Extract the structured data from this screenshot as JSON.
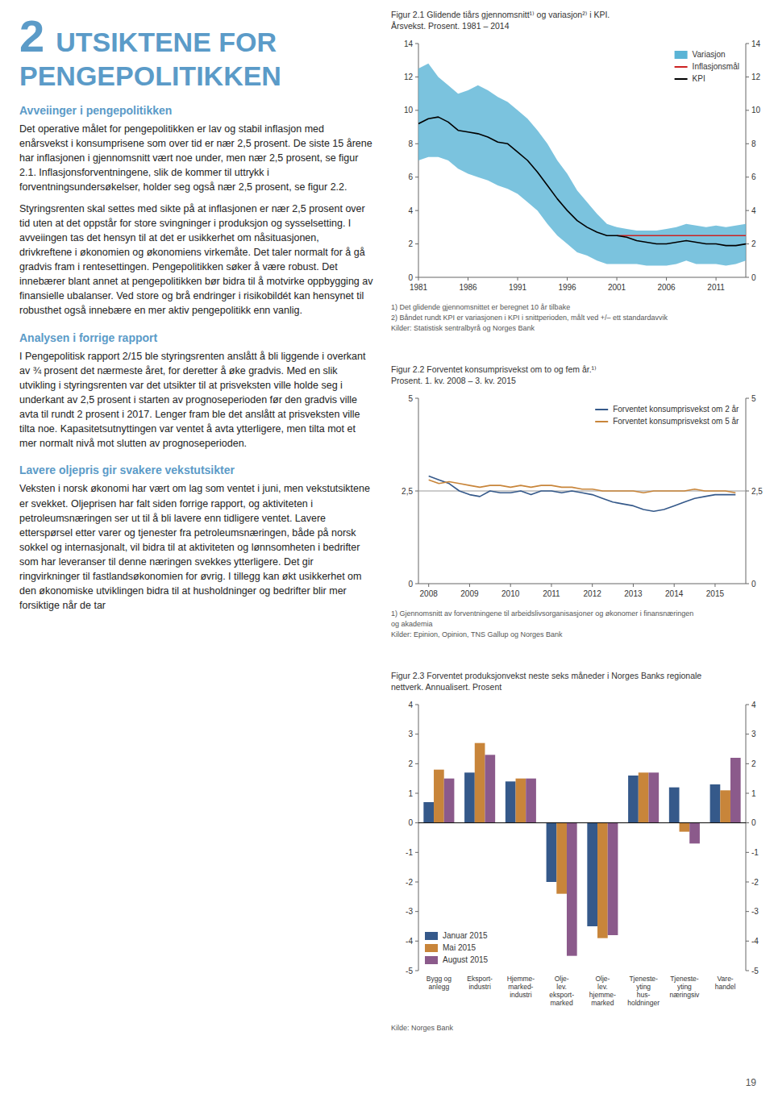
{
  "page": {
    "heading_number": "2",
    "heading_lines": [
      "UTSIKTENE FOR",
      "PENGEPOLITIKKEN"
    ],
    "color": "#5b9bc8",
    "sections": [
      {
        "heading": "Avveiinger i pengepolitikken",
        "paragraphs": [
          "Det operative målet for pengepolitikken er lav og stabil inflasjon med enårsvekst i konsumprisene som over tid er nær 2,5 prosent. De siste 15 årene har inflasjonen i gjennomsnitt vært noe under, men nær 2,5 prosent, se figur 2.1. Inflasjonsforventningene, slik de kommer til uttrykk i forventningsundersøkelser, holder seg også nær 2,5 prosent, se figur 2.2.",
          "Styringsrenten skal settes med sikte på at inflasjonen er nær 2,5 prosent over tid uten at det oppstår for store svingninger i produksjon og sysselsetting. I avveiingen tas det hensyn til at det er usikkerhet om nåsituasjonen, drivkreftene i økonomien og økonomiens virkemåte. Det taler normalt for å gå gradvis fram i rentesettingen. Pengepolitikken søker å være robust. Det innebærer blant annet at pengepolitikken bør bidra til å motvirke oppbygging av finansielle ubalanser. Ved store og brå endringer i risikobildét kan hensynet til robusthet også innebære en mer aktiv pengepolitikk enn vanlig."
        ]
      },
      {
        "heading": "Analysen i forrige rapport",
        "paragraphs": [
          "I Pengepolitisk rapport 2/15 ble styringsrenten anslått å bli liggende i overkant av ¾ prosent det nærmeste året, for deretter å øke gradvis. Med en slik utvikling i styringsrenten var det utsikter til at prisveksten ville holde seg i underkant av 2,5 prosent i starten av prognoseperioden før den gradvis ville avta til rundt 2 prosent i 2017. Lenger fram ble det anslått at prisveksten ville tilta noe. Kapasitetsutnyttingen var ventet å avta ytterligere, men tilta mot et mer normalt nivå mot slutten av prognoseperioden."
        ]
      },
      {
        "heading": "Lavere oljepris gir svakere vekstutsikter",
        "paragraphs": [
          "Veksten i norsk økonomi har vært om lag som ventet i juni, men vekstutsiktene er svekket. Oljeprisen har falt siden forrige rapport, og aktiviteten i petroleumsnæringen ser ut til å bli lavere enn tidligere ventet. Lavere etterspørsel etter varer og tjenester fra petroleumsnæringen, både på norsk sokkel og internasjonalt, vil bidra til at aktiviteten og lønnsomheten i bedrifter som har leveranser til denne næringen svekkes ytterligere. Det gir ringvirkninger til fastlandsøkonomien for øvrig. I tillegg kan økt usikkerhet om den økonomiske utviklingen bidra til at husholdninger og bedrifter blir mer forsiktige når de tar"
        ]
      }
    ],
    "page_number": "19"
  },
  "chart_data": [
    {
      "type": "line",
      "title": "Figur 2.1 Glidende tiårs gjennomsnitt¹⁾ og variasjon²⁾ i KPI.",
      "subtitle": "Årsvekst. Prosent. 1981 – 2014",
      "x": [
        1981,
        1982,
        1983,
        1984,
        1985,
        1986,
        1987,
        1988,
        1989,
        1990,
        1991,
        1992,
        1993,
        1994,
        1995,
        1996,
        1997,
        1998,
        1999,
        2000,
        2001,
        2002,
        2003,
        2004,
        2005,
        2006,
        2007,
        2008,
        2009,
        2010,
        2011,
        2012,
        2013,
        2014
      ],
      "xlim": [
        1981,
        2014
      ],
      "xticks": [
        1981,
        1986,
        1991,
        1996,
        2001,
        2006,
        2011
      ],
      "ylim": [
        0,
        14
      ],
      "yticks": [
        0,
        2,
        4,
        6,
        8,
        10,
        12,
        14
      ],
      "y2lim": [
        0,
        14
      ],
      "y2ticks": [
        0,
        2,
        4,
        6,
        8,
        10,
        12,
        14
      ],
      "legend": "upper right",
      "grid": false,
      "series": [
        {
          "name": "Variasjon",
          "type": "band",
          "color": "#5ab4d6",
          "upper": [
            12.5,
            12.8,
            12.0,
            11.5,
            11.0,
            11.2,
            11.5,
            11.2,
            10.8,
            10.5,
            10.0,
            9.5,
            8.8,
            8.0,
            7.0,
            6.2,
            5.2,
            4.5,
            3.8,
            3.2,
            3.0,
            2.9,
            2.8,
            2.8,
            2.8,
            2.9,
            3.0,
            3.2,
            3.1,
            3.0,
            3.1,
            3.0,
            3.1,
            3.2
          ],
          "lower": [
            7.0,
            7.2,
            7.2,
            7.0,
            6.5,
            6.2,
            6.0,
            5.8,
            5.5,
            5.3,
            5.0,
            4.5,
            4.0,
            3.2,
            2.5,
            2.0,
            1.5,
            1.3,
            1.0,
            0.8,
            0.8,
            0.8,
            0.8,
            0.7,
            0.7,
            0.7,
            0.8,
            1.0,
            0.8,
            0.8,
            0.8,
            0.7,
            0.8,
            1.0
          ]
        },
        {
          "name": "Inflasjonsmål",
          "type": "line",
          "color": "#cc2222",
          "values": [
            null,
            null,
            null,
            null,
            null,
            null,
            null,
            null,
            null,
            null,
            null,
            null,
            null,
            null,
            null,
            null,
            null,
            null,
            null,
            null,
            2.5,
            2.5,
            2.5,
            2.5,
            2.5,
            2.5,
            2.5,
            2.5,
            2.5,
            2.5,
            2.5,
            2.5,
            2.5,
            2.5
          ]
        },
        {
          "name": "KPI",
          "type": "line",
          "color": "#000000",
          "values": [
            9.2,
            9.5,
            9.6,
            9.3,
            8.8,
            8.7,
            8.6,
            8.4,
            8.1,
            8.0,
            7.5,
            7.0,
            6.3,
            5.5,
            4.7,
            4.0,
            3.4,
            3.0,
            2.7,
            2.5,
            2.5,
            2.4,
            2.2,
            2.1,
            2.0,
            2.0,
            2.1,
            2.2,
            2.1,
            2.0,
            2.0,
            1.9,
            1.9,
            2.0
          ]
        }
      ],
      "notes": [
        "1) Det glidende gjennomsnittet er beregnet 10 år tilbake",
        "2) Båndet rundt KPI er variasjonen i KPI i snittperioden, målt ved +/– ett standardavvik",
        "Kilder: Statistisk sentralbyrå og Norges Bank"
      ]
    },
    {
      "type": "line",
      "title": "Figur 2.2 Forventet konsumprisvekst om to og fem år.¹⁾",
      "subtitle": "Prosent. 1. kv. 2008 – 3. kv. 2015",
      "x": [
        2008.0,
        2008.25,
        2008.5,
        2008.75,
        2009.0,
        2009.25,
        2009.5,
        2009.75,
        2010.0,
        2010.25,
        2010.5,
        2010.75,
        2011.0,
        2011.25,
        2011.5,
        2011.75,
        2012.0,
        2012.25,
        2012.5,
        2012.75,
        2013.0,
        2013.25,
        2013.5,
        2013.75,
        2014.0,
        2014.25,
        2014.5,
        2014.75,
        2015.0,
        2015.25,
        2015.5
      ],
      "xlim": [
        2007.75,
        2015.75
      ],
      "xticks": [
        2008,
        2009,
        2010,
        2011,
        2012,
        2013,
        2014,
        2015
      ],
      "ylim": [
        0,
        5
      ],
      "yticks": [
        0,
        {
          "value": 2.5,
          "label": "2,5"
        },
        5
      ],
      "y2lim": [
        0,
        5
      ],
      "y2ticks": [
        0,
        {
          "value": 2.5,
          "label": "2,5"
        },
        5
      ],
      "reference_line": 2.5,
      "legend": "upper right",
      "grid": false,
      "series": [
        {
          "name": "Forventet konsumprisvekst om 2 år",
          "type": "line",
          "color": "#35598a",
          "values": [
            2.9,
            2.8,
            2.7,
            2.5,
            2.4,
            2.35,
            2.5,
            2.45,
            2.45,
            2.5,
            2.4,
            2.5,
            2.5,
            2.45,
            2.5,
            2.45,
            2.4,
            2.3,
            2.2,
            2.15,
            2.1,
            2.0,
            1.95,
            2.0,
            2.1,
            2.2,
            2.3,
            2.35,
            2.4,
            2.4,
            2.4
          ]
        },
        {
          "name": "Forventet konsumprisvekst om 5 år",
          "type": "line",
          "color": "#c8853a",
          "values": [
            2.8,
            2.7,
            2.75,
            2.7,
            2.65,
            2.6,
            2.65,
            2.65,
            2.6,
            2.65,
            2.6,
            2.65,
            2.65,
            2.6,
            2.6,
            2.55,
            2.55,
            2.5,
            2.5,
            2.5,
            2.5,
            2.45,
            2.5,
            2.5,
            2.5,
            2.5,
            2.55,
            2.5,
            2.5,
            2.5,
            2.45
          ]
        }
      ],
      "notes": [
        "1) Gjennomsnitt av forventningene til arbeidslivsorganisasjoner og økonomer i finansnæringen",
        "og akademia",
        "Kilder: Epinion, Opinion, TNS Gallup og Norges Bank"
      ]
    },
    {
      "type": "bar",
      "title": "Figur 2.3 Forventet produksjonvekst neste seks måneder i Norges Banks regionale",
      "subtitle": "nettverk. Annualisert. Prosent",
      "categories": [
        "Bygg og\nanlegg",
        "Eksport-\nindustri",
        "Hjemme-\nmarked-\nindustri",
        "Olje-\nlev.\neksport-\nmarked",
        "Olje-\nlev.\nhjemme-\nmarked",
        "Tjeneste-\nyting\nhus-\nholdninger",
        "Tjeneste-\nyting\nnæringsiv",
        "Vare-\nhandel"
      ],
      "ylim": [
        -5,
        4
      ],
      "yticks": [
        -5,
        -4,
        -3,
        -2,
        -1,
        0,
        1,
        2,
        3,
        4
      ],
      "y2lim": [
        -5,
        4
      ],
      "y2ticks": [
        -5,
        -4,
        -3,
        -2,
        -1,
        0,
        1,
        2,
        3,
        4
      ],
      "reference_line": 0,
      "legend": "lower left",
      "grid": false,
      "series": [
        {
          "name": "Januar 2015",
          "color": "#35598a",
          "values": [
            0.7,
            1.7,
            1.4,
            -2.0,
            -3.5,
            1.6,
            1.2,
            1.3
          ]
        },
        {
          "name": "Mai 2015",
          "color": "#c8853a",
          "values": [
            1.8,
            2.7,
            1.5,
            -2.4,
            -3.9,
            1.7,
            -0.3,
            1.1
          ]
        },
        {
          "name": "August 2015",
          "color": "#8b5a8b",
          "values": [
            1.5,
            2.3,
            1.5,
            -4.5,
            -3.8,
            1.7,
            -0.7,
            2.2
          ]
        }
      ],
      "notes": [
        "Kilde: Norges Bank"
      ]
    }
  ]
}
